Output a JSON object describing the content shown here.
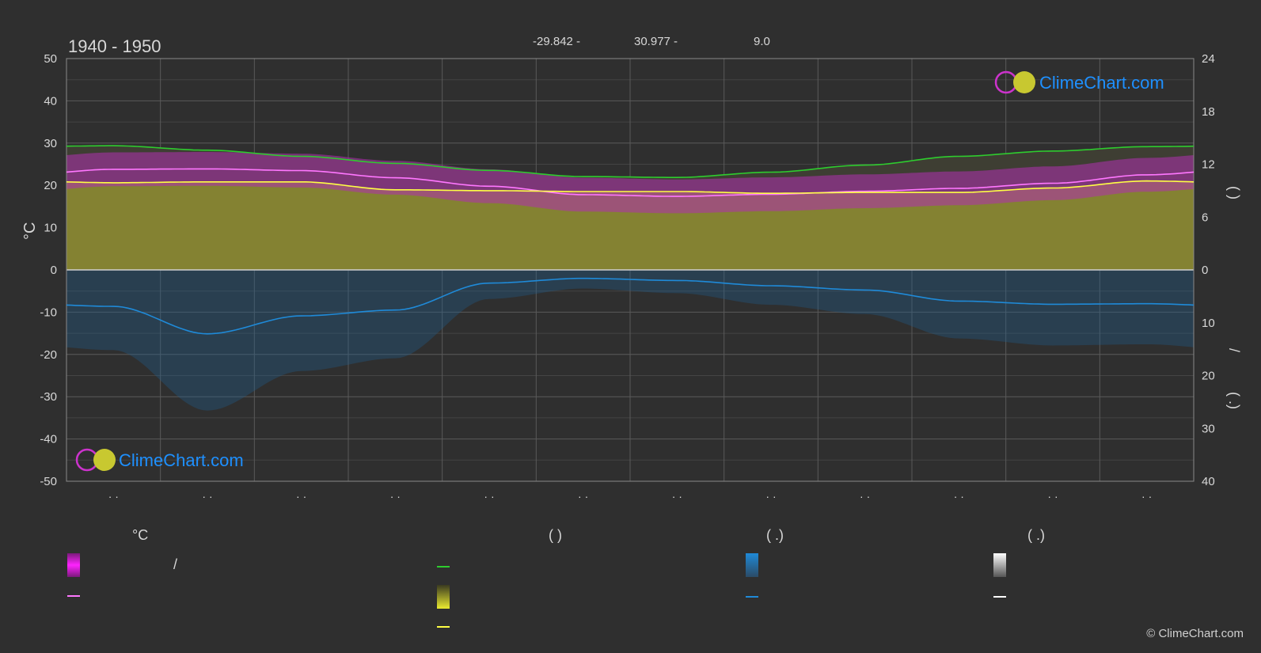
{
  "header": {
    "period": "1940 - 1950",
    "stat_1": "-29.842 -",
    "stat_2": "30.977 -",
    "stat_3": "9.0"
  },
  "axes": {
    "left_unit": "°C",
    "left_ticks": [
      "50",
      "40",
      "30",
      "20",
      "10",
      "0",
      "-10",
      "-20",
      "-30",
      "-40",
      "-50"
    ],
    "right_top_ticks": [
      "24",
      "18",
      "12",
      "6",
      "0"
    ],
    "right_bottom_ticks": [
      "0",
      "10",
      "20",
      "30",
      "40"
    ],
    "right_top_label": "(      )",
    "right_bottom_label_1": "/",
    "right_bottom_label_2": "(   .)",
    "month_labels": [
      "· ·",
      "· ·",
      "· ·",
      "· ·",
      "· ·",
      "· ·",
      "· ·",
      "· ·",
      "· ·",
      "· ·",
      "· ·",
      "· ·"
    ]
  },
  "logo_text": "ClimeChart.com",
  "legend": {
    "col1_header": "°C",
    "col1_row1_suffix": "/",
    "col2_header": "(          )",
    "col3_header": "(    .)",
    "col4_header": "(    .)",
    "colors": {
      "magenta": "#e020e0",
      "pink": "#ff77ff",
      "green": "#2ecc2e",
      "yellow": "#d8d832",
      "yellow_line": "#ffff44",
      "blue": "#1f8ad8",
      "white": "#ffffff"
    }
  },
  "copyright": "© ClimeChart.com",
  "chart_data": {
    "type": "line",
    "x_months": 12,
    "ylim_left": [
      -50,
      50
    ],
    "ylim_right_top": [
      0,
      24
    ],
    "ylim_right_bottom": [
      0,
      40
    ],
    "grid": true,
    "series": [
      {
        "key": "daylight",
        "axis": "right_top",
        "color": "#2ecc2e",
        "values": [
          14.1,
          13.6,
          12.9,
          12.1,
          11.3,
          10.6,
          10.5,
          11.1,
          11.9,
          12.9,
          13.5,
          14.0,
          14.1
        ]
      },
      {
        "key": "max_temp",
        "color": "#ff77ff",
        "values": [
          23.8,
          23.9,
          23.5,
          21.8,
          19.8,
          17.8,
          17.4,
          17.9,
          18.6,
          19.3,
          20.5,
          22.5,
          22.7
        ]
      },
      {
        "key": "sunshine",
        "axis": "right_top",
        "color": "#ffff44",
        "values": [
          9.9,
          10.0,
          10.0,
          9.1,
          9.0,
          8.9,
          8.9,
          8.7,
          8.8,
          8.8,
          9.3,
          10.1,
          10.2
        ]
      },
      {
        "key": "precip",
        "axis": "right_bottom",
        "color": "#1f8ad8",
        "values": [
          6.9,
          12.1,
          8.7,
          7.6,
          2.5,
          1.6,
          2.0,
          3.0,
          3.8,
          5.9,
          6.5,
          6.4,
          6.4
        ]
      }
    ]
  }
}
